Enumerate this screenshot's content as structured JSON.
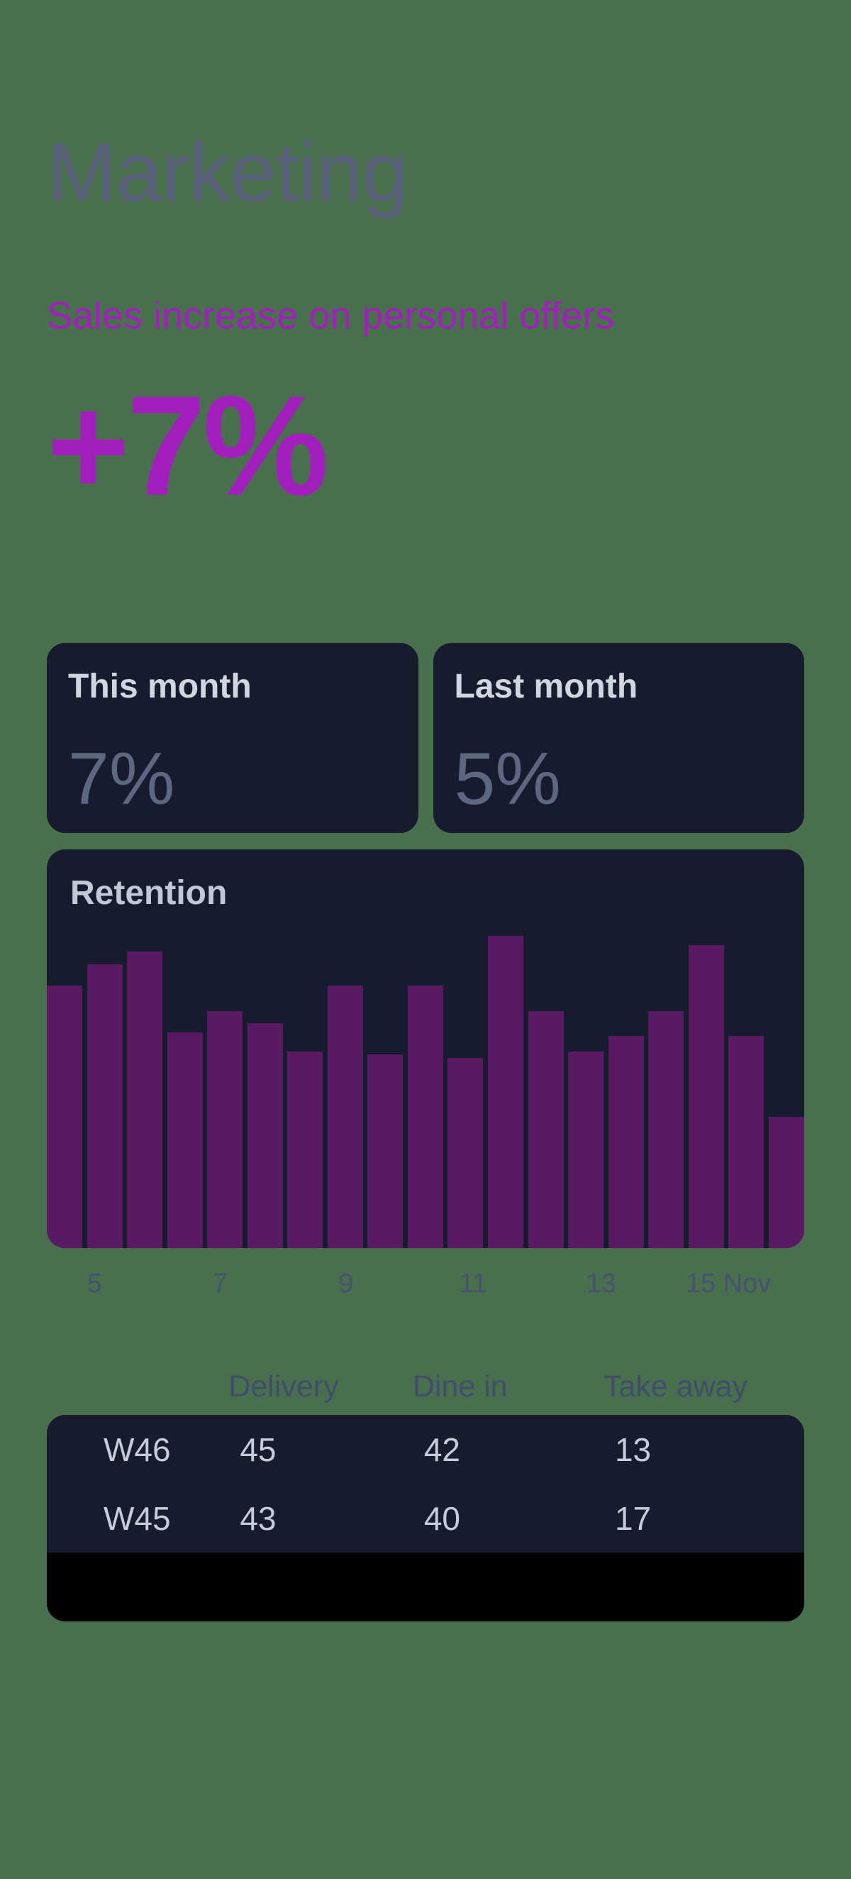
{
  "page": {
    "title": "Marketing",
    "subtitle": "Sales increase on personal offers",
    "kpi": "+7%"
  },
  "stats": [
    {
      "label": "This month",
      "value": "7%"
    },
    {
      "label": "Last month",
      "value": "5%"
    }
  ],
  "chart_data": {
    "type": "bar",
    "title": "Retention",
    "values": [
      84,
      91,
      95,
      69,
      76,
      72,
      63,
      84,
      62,
      84,
      61,
      100,
      76,
      63,
      68,
      76,
      97,
      68,
      42
    ],
    "ylim": [
      0,
      100
    ],
    "x_tick_labels": [
      "5",
      "7",
      "9",
      "11",
      "13",
      "15 Nov"
    ],
    "x_tick_positions_pct": [
      6.3,
      22.9,
      39.5,
      56.3,
      73.2,
      90
    ],
    "grid": false,
    "legend": false
  },
  "table": {
    "headers": [
      "",
      "Delivery",
      "Dine in",
      "Take away"
    ],
    "rows": [
      [
        "W46",
        "45",
        "42",
        "13"
      ],
      [
        "W45",
        "43",
        "40",
        "17"
      ]
    ]
  },
  "colors": {
    "bg": "#4a6f4f",
    "card": "#161c2d",
    "accent": "#a21fbe",
    "bar": "#5a1a63",
    "title": "#59607a"
  }
}
